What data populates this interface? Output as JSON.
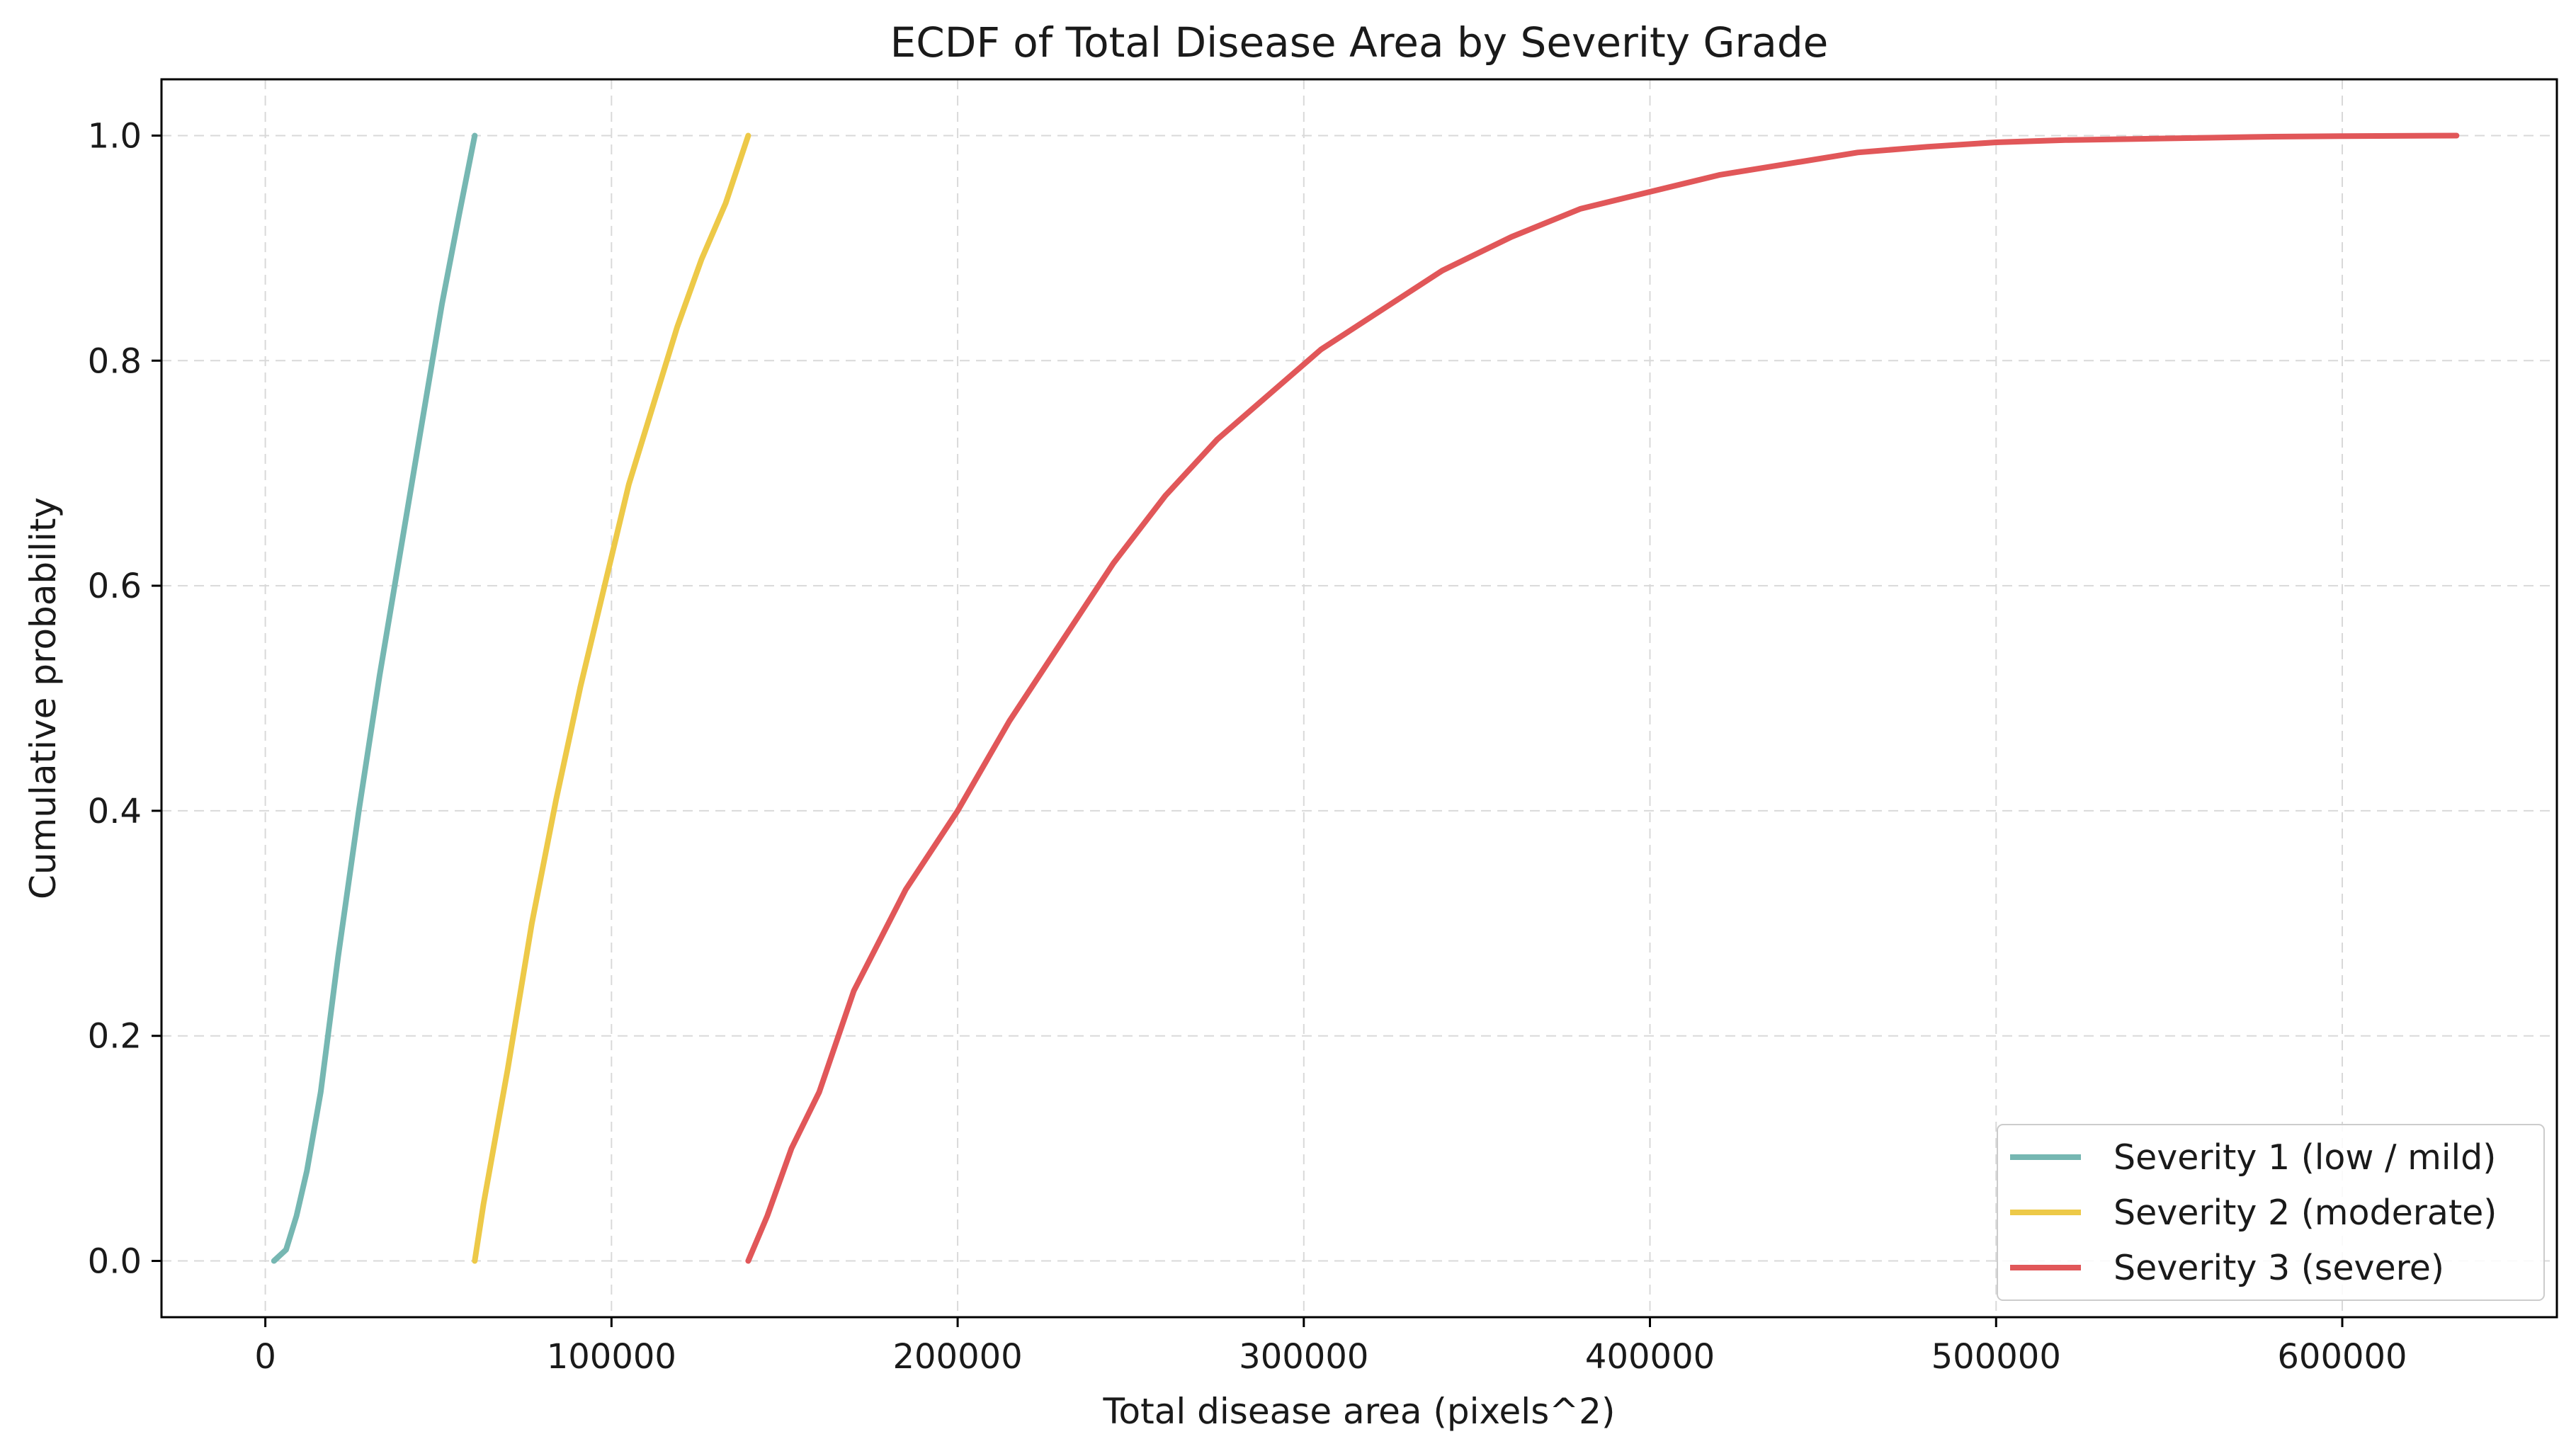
{
  "chart_data": {
    "type": "line",
    "title": "ECDF of Total Disease Area by Severity Grade",
    "xlabel": "Total disease area (pixels^2)",
    "ylabel": "Cumulative probability",
    "xlim": [
      -30000,
      662000
    ],
    "ylim": [
      -0.05,
      1.05
    ],
    "xticks": [
      0,
      100000,
      200000,
      300000,
      400000,
      500000,
      600000
    ],
    "yticks": [
      0.0,
      0.2,
      0.4,
      0.6,
      0.8,
      1.0
    ],
    "xtick_labels": [
      "0",
      "100000",
      "200000",
      "300000",
      "400000",
      "500000",
      "600000"
    ],
    "ytick_labels": [
      "0.0",
      "0.2",
      "0.4",
      "0.6",
      "0.8",
      "1.0"
    ],
    "grid": true,
    "legend_position": "lower-right",
    "series": [
      {
        "name": "Severity 1 (low / mild)",
        "color": "#76b7b2",
        "x": [
          2500,
          6000,
          9000,
          12000,
          16000,
          21000,
          27000,
          33000,
          39000,
          45000,
          51000,
          56000,
          60500
        ],
        "y": [
          0.0,
          0.01,
          0.04,
          0.08,
          0.15,
          0.27,
          0.4,
          0.52,
          0.63,
          0.74,
          0.85,
          0.93,
          1.0
        ]
      },
      {
        "name": "Severity 2 (moderate)",
        "color": "#edc948",
        "x": [
          60500,
          63000,
          70000,
          77000,
          84000,
          91000,
          98000,
          105000,
          112000,
          119000,
          126000,
          133000,
          139500
        ],
        "y": [
          0.0,
          0.05,
          0.17,
          0.3,
          0.41,
          0.51,
          0.6,
          0.69,
          0.76,
          0.83,
          0.89,
          0.94,
          1.0
        ]
      },
      {
        "name": "Severity 3 (severe)",
        "color": "#e15759",
        "x": [
          139500,
          145000,
          152000,
          160000,
          170000,
          185000,
          200000,
          215000,
          230000,
          245000,
          260000,
          275000,
          290000,
          305000,
          320000,
          340000,
          360000,
          380000,
          400000,
          420000,
          440000,
          460000,
          480000,
          500000,
          520000,
          540000,
          560000,
          580000,
          600000,
          633000
        ],
        "y": [
          0.0,
          0.04,
          0.1,
          0.15,
          0.24,
          0.33,
          0.4,
          0.48,
          0.55,
          0.62,
          0.68,
          0.73,
          0.77,
          0.81,
          0.84,
          0.88,
          0.91,
          0.935,
          0.95,
          0.965,
          0.975,
          0.985,
          0.99,
          0.994,
          0.996,
          0.997,
          0.998,
          0.999,
          0.9995,
          1.0
        ]
      }
    ]
  }
}
